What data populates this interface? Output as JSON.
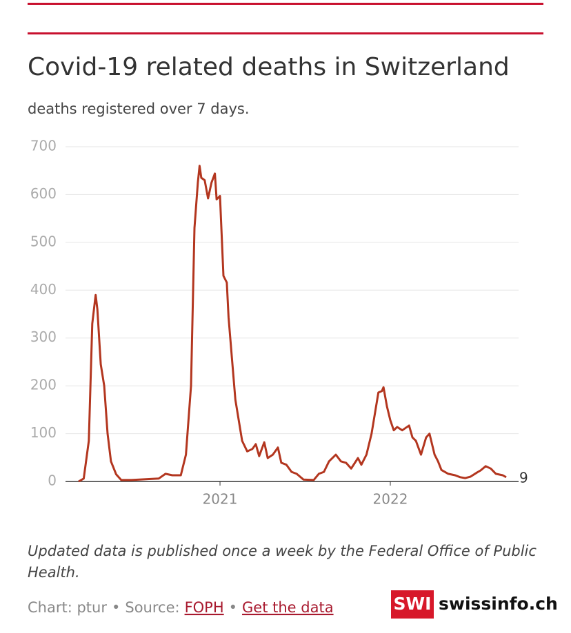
{
  "chart_data": {
    "type": "line",
    "title": "Covid-19 related deaths in Switzerland",
    "subtitle": "deaths registered over 7 days.",
    "x": [
      2020.17,
      2020.2,
      2020.23,
      2020.25,
      2020.27,
      2020.28,
      2020.3,
      2020.32,
      2020.34,
      2020.36,
      2020.39,
      2020.42,
      2020.48,
      2020.64,
      2020.68,
      2020.72,
      2020.77,
      2020.8,
      2020.83,
      2020.85,
      2020.87,
      2020.88,
      2020.89,
      2020.91,
      2020.93,
      2020.95,
      2020.97,
      2020.98,
      2021.0,
      2021.02,
      2021.04,
      2021.05,
      2021.07,
      2021.09,
      2021.11,
      2021.13,
      2021.16,
      2021.19,
      2021.21,
      2021.23,
      2021.26,
      2021.28,
      2021.31,
      2021.34,
      2021.36,
      2021.39,
      2021.42,
      2021.45,
      2021.49,
      2021.55,
      2021.58,
      2021.61,
      2021.64,
      2021.68,
      2021.71,
      2021.74,
      2021.77,
      2021.81,
      2021.83,
      2021.86,
      2021.89,
      2021.93,
      2021.95,
      2021.96,
      2021.98,
      2022.0,
      2022.02,
      2022.04,
      2022.07,
      2022.11,
      2022.13,
      2022.15,
      2022.18,
      2022.21,
      2022.23,
      2022.26,
      2022.28,
      2022.3,
      2022.34,
      2022.38,
      2022.41,
      2022.44,
      2022.47,
      2022.51,
      2022.53,
      2022.56,
      2022.59,
      2022.62,
      2022.66,
      2022.68
    ],
    "series": [
      {
        "color": "#b3361f",
        "values": [
          0,
          6,
          85,
          330,
          390,
          360,
          245,
          200,
          100,
          42,
          15,
          3,
          3,
          6,
          16,
          13,
          13,
          56,
          200,
          530,
          625,
          660,
          635,
          630,
          592,
          625,
          644,
          590,
          597,
          430,
          416,
          344,
          258,
          171,
          128,
          85,
          63,
          68,
          78,
          53,
          82,
          49,
          56,
          71,
          39,
          35,
          20,
          16,
          4,
          3,
          16,
          20,
          42,
          56,
          42,
          39,
          27,
          49,
          35,
          56,
          100,
          186,
          189,
          197,
          157,
          128,
          107,
          114,
          107,
          117,
          92,
          85,
          56,
          92,
          100,
          56,
          42,
          24,
          16,
          13,
          9,
          7,
          10,
          19,
          23,
          32,
          27,
          16,
          13,
          9
        ]
      }
    ],
    "xlim": [
      2020.093,
      2022.753
    ],
    "xticks": [
      2021,
      2022
    ],
    "ylim": [
      0,
      700
    ],
    "yticks": [
      0,
      100,
      200,
      300,
      400,
      500,
      600,
      700
    ],
    "grid": true
  },
  "footer": {
    "note": "Updated data is published once a week by the Federal Office of Public Health.",
    "credit": "Chart: ptur",
    "separator": "•",
    "source_label": "Source:",
    "source_link": "FOPH",
    "data_link": "Get the data",
    "logo_mark": "SWI",
    "logo_text": "swissinfo.ch"
  }
}
